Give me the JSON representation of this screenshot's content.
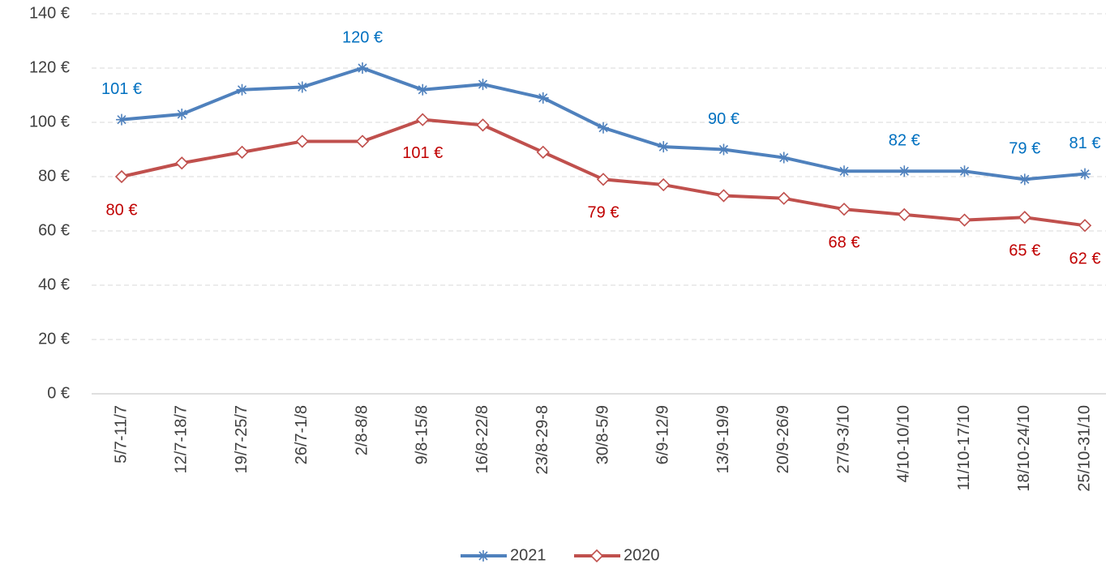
{
  "chart_data": {
    "type": "line",
    "categories": [
      "5/7-11/7",
      "12/7-18/7",
      "19/7-25/7",
      "26/7-1/8",
      "2/8-8/8",
      "9/8-15/8",
      "16/8-22/8",
      "23/8-29-8",
      "30/8-5/9",
      "6/9-12/9",
      "13/9-19/9",
      "20/9-26/9",
      "27/9-3/10",
      "4/10-10/10",
      "11/10-17/10",
      "18/10-24/10",
      "25/10-31/10"
    ],
    "series": [
      {
        "name": "2021",
        "color": "#4f81bd",
        "label_color": "#0070c0",
        "marker": "star",
        "label_position": "above",
        "values": [
          101,
          103,
          112,
          113,
          120,
          112,
          114,
          109,
          98,
          91,
          90,
          87,
          82,
          82,
          82,
          79,
          81
        ],
        "value_labels": [
          "101 €",
          null,
          null,
          null,
          "120 €",
          null,
          null,
          null,
          null,
          null,
          "90 €",
          null,
          null,
          "82 €",
          null,
          "79 €",
          "81 €"
        ]
      },
      {
        "name": "2020",
        "color": "#c0504d",
        "label_color": "#c00000",
        "marker": "diamond",
        "label_position": "below",
        "values": [
          80,
          85,
          89,
          93,
          93,
          101,
          99,
          89,
          79,
          77,
          73,
          72,
          68,
          66,
          64,
          65,
          62
        ],
        "value_labels": [
          "80 €",
          null,
          null,
          null,
          null,
          "101 €",
          null,
          null,
          "79 €",
          null,
          null,
          null,
          "68 €",
          null,
          null,
          "65 €",
          "62 €"
        ]
      }
    ],
    "ylim": [
      0,
      140
    ],
    "yticks": [
      {
        "value": 0,
        "label": "0 €"
      },
      {
        "value": 20,
        "label": "20 €"
      },
      {
        "value": 40,
        "label": "40 €"
      },
      {
        "value": 60,
        "label": "60 €"
      },
      {
        "value": 80,
        "label": "80 €"
      },
      {
        "value": 100,
        "label": "100 €"
      },
      {
        "value": 120,
        "label": "120 €"
      },
      {
        "value": 140,
        "label": "140 €"
      }
    ],
    "grid": true,
    "legend": "bottom"
  }
}
